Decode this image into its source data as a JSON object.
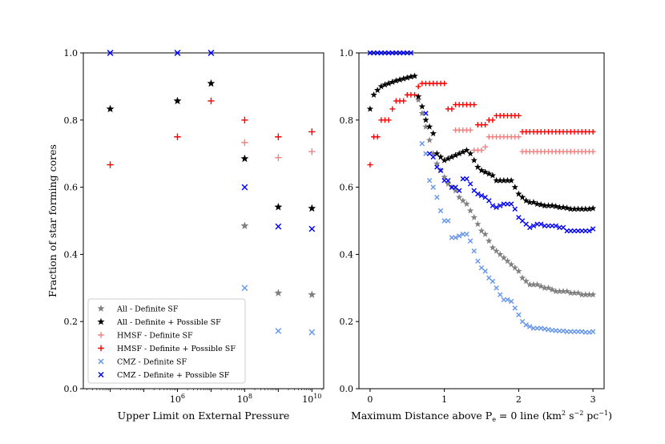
{
  "series_styles": [
    {
      "key": "all_def",
      "marker": "star",
      "color": "#808080"
    },
    {
      "key": "all_poss",
      "marker": "star",
      "color": "#000000"
    },
    {
      "key": "hmsf_def",
      "marker": "plus",
      "color": "#f08080"
    },
    {
      "key": "hmsf_poss",
      "marker": "plus",
      "color": "#ff0000"
    },
    {
      "key": "cmz_def",
      "marker": "x",
      "color": "#6495ed"
    },
    {
      "key": "cmz_poss",
      "marker": "x",
      "color": "#0000ff"
    }
  ],
  "legend": [
    "All - Definite SF",
    "All - Definite + Possible SF",
    "HMSF - Definite SF",
    "HMSF - Definite + Possible SF",
    "CMZ - Definite SF",
    "CMZ - Definite + Possible SF"
  ],
  "chart_data": [
    {
      "type": "scatter",
      "title": "",
      "xlabel": "Upper Limit on External Pressure",
      "ylabel": "Fraction of star forming cores",
      "xscale": "log",
      "xlim": [
        3.2,
        10.35
      ],
      "ylim": [
        0.0,
        1.0
      ],
      "x_ticks": [
        6,
        8,
        10
      ],
      "x_tick_labels": [
        {
          "base": "10",
          "exp": "6"
        },
        {
          "base": "10",
          "exp": "8"
        },
        {
          "base": "10",
          "exp": "10"
        }
      ],
      "y_ticks": [
        "0.0",
        "0.2",
        "0.4",
        "0.6",
        "0.8",
        "1.0"
      ],
      "x_log10": [
        4,
        6,
        7,
        8,
        9,
        10
      ],
      "series": [
        {
          "name": "All - Definite SF",
          "values": [
            null,
            null,
            null,
            0.485,
            0.285,
            0.28
          ]
        },
        {
          "name": "All - Definite + Possible SF",
          "values": [
            0.833,
            0.857,
            0.909,
            0.685,
            0.541,
            0.537
          ]
        },
        {
          "name": "HMSF - Definite SF",
          "values": [
            null,
            null,
            null,
            0.733,
            0.688,
            0.706
          ]
        },
        {
          "name": "HMSF - Definite + Possible SF",
          "values": [
            0.667,
            0.75,
            0.857,
            0.8,
            0.75,
            0.765
          ]
        },
        {
          "name": "CMZ - Definite SF",
          "values": [
            1.0,
            1.0,
            1.0,
            0.3,
            0.172,
            0.168
          ]
        },
        {
          "name": "CMZ - Definite + Possible SF",
          "values": [
            1.0,
            1.0,
            1.0,
            0.6,
            0.483,
            0.476
          ]
        }
      ]
    },
    {
      "type": "scatter",
      "title": "",
      "xlabel": "Maximum Distance above P",
      "xlabel_sub": "e",
      "xlabel_mid": " = 0 line (km",
      "xlabel_exp1": "2",
      "xlabel_mid2": " s",
      "xlabel_exp2": "−2",
      "xlabel_mid3": " pc",
      "xlabel_exp3": "−1",
      "xlabel_end": ")",
      "ylabel": "",
      "xlim": [
        -0.15,
        3.15
      ],
      "ylim": [
        0.0,
        1.0
      ],
      "x_ticks": [
        "0",
        "1",
        "2",
        "3"
      ],
      "y_ticks": [
        "0.0",
        "0.2",
        "0.4",
        "0.6",
        "0.8",
        "1.0"
      ],
      "x": [
        0.0,
        0.05,
        0.1,
        0.15,
        0.2,
        0.25,
        0.3,
        0.35,
        0.4,
        0.45,
        0.5,
        0.55,
        0.6,
        0.65,
        0.7,
        0.75,
        0.8,
        0.85,
        0.9,
        0.95,
        1.0,
        1.05,
        1.1,
        1.15,
        1.2,
        1.25,
        1.3,
        1.35,
        1.4,
        1.45,
        1.5,
        1.55,
        1.6,
        1.65,
        1.7,
        1.75,
        1.8,
        1.85,
        1.9,
        1.95,
        2.0,
        2.05,
        2.1,
        2.15,
        2.2,
        2.25,
        2.3,
        2.35,
        2.4,
        2.45,
        2.5,
        2.55,
        2.6,
        2.65,
        2.7,
        2.75,
        2.8,
        2.85,
        2.9,
        2.95,
        3.0
      ],
      "series": [
        {
          "name": "All - Definite SF",
          "values": [
            null,
            null,
            null,
            null,
            null,
            null,
            null,
            null,
            null,
            null,
            null,
            null,
            null,
            0.86,
            0.82,
            0.78,
            0.74,
            0.7,
            0.67,
            0.65,
            0.63,
            0.61,
            0.6,
            0.59,
            0.57,
            0.56,
            0.55,
            0.53,
            0.51,
            0.49,
            0.47,
            0.46,
            0.44,
            0.42,
            0.41,
            0.4,
            0.39,
            0.38,
            0.37,
            0.36,
            0.35,
            0.33,
            0.32,
            0.31,
            0.31,
            0.31,
            0.305,
            0.3,
            0.3,
            0.295,
            0.29,
            0.29,
            0.29,
            0.29,
            0.285,
            0.285,
            0.285,
            0.28,
            0.28,
            0.28,
            0.28
          ]
        },
        {
          "name": "All - Definite + Possible SF",
          "values": [
            0.833,
            0.875,
            0.889,
            0.9,
            0.905,
            0.909,
            0.913,
            0.917,
            0.92,
            0.923,
            0.926,
            0.929,
            0.931,
            0.87,
            0.84,
            0.8,
            0.78,
            0.76,
            0.7,
            0.69,
            0.68,
            0.685,
            0.69,
            0.695,
            0.7,
            0.705,
            0.71,
            0.7,
            0.68,
            0.66,
            0.65,
            0.645,
            0.64,
            0.635,
            0.62,
            0.62,
            0.62,
            0.62,
            0.62,
            0.6,
            0.58,
            0.57,
            0.56,
            0.555,
            0.555,
            0.55,
            0.548,
            0.545,
            0.545,
            0.545,
            0.543,
            0.54,
            0.54,
            0.538,
            0.535,
            0.535,
            0.535,
            0.535,
            0.535,
            0.535,
            0.537
          ]
        },
        {
          "name": "HMSF - Definite SF",
          "values": [
            null,
            null,
            null,
            null,
            null,
            null,
            null,
            null,
            null,
            null,
            null,
            null,
            null,
            null,
            null,
            null,
            null,
            null,
            null,
            null,
            null,
            null,
            null,
            0.77,
            0.77,
            0.77,
            0.77,
            0.77,
            0.71,
            0.71,
            0.71,
            0.72,
            0.75,
            0.75,
            0.75,
            0.75,
            0.75,
            0.75,
            0.75,
            0.75,
            0.75,
            0.706,
            0.706,
            0.706,
            0.706,
            0.706,
            0.706,
            0.706,
            0.706,
            0.706,
            0.706,
            0.706,
            0.706,
            0.706,
            0.706,
            0.706,
            0.706,
            0.706,
            0.706,
            0.706,
            0.706
          ]
        },
        {
          "name": "HMSF - Definite + Possible SF",
          "values": [
            0.667,
            0.75,
            0.75,
            0.8,
            0.8,
            0.8,
            0.833,
            0.857,
            0.857,
            0.857,
            0.875,
            0.875,
            0.875,
            0.9,
            0.909,
            0.909,
            0.909,
            0.909,
            0.909,
            0.909,
            0.909,
            0.833,
            0.833,
            0.846,
            0.846,
            0.846,
            0.846,
            0.846,
            0.846,
            0.786,
            0.786,
            0.786,
            0.8,
            0.8,
            0.813,
            0.813,
            0.813,
            0.813,
            0.813,
            0.813,
            0.813,
            0.765,
            0.765,
            0.765,
            0.765,
            0.765,
            0.765,
            0.765,
            0.765,
            0.765,
            0.765,
            0.765,
            0.765,
            0.765,
            0.765,
            0.765,
            0.765,
            0.765,
            0.765,
            0.765,
            0.765
          ]
        },
        {
          "name": "CMZ - Definite SF",
          "values": [
            1.0,
            1.0,
            1.0,
            1.0,
            1.0,
            1.0,
            1.0,
            1.0,
            1.0,
            1.0,
            1.0,
            1.0,
            null,
            null,
            0.73,
            0.7,
            0.62,
            0.6,
            0.57,
            0.53,
            0.5,
            0.5,
            0.45,
            0.45,
            0.455,
            0.46,
            0.46,
            0.44,
            0.41,
            0.38,
            0.36,
            0.35,
            0.33,
            0.32,
            0.3,
            0.28,
            0.265,
            0.265,
            0.26,
            0.24,
            0.22,
            0.2,
            0.19,
            0.185,
            0.18,
            0.18,
            0.18,
            0.178,
            0.176,
            0.174,
            0.173,
            0.172,
            0.172,
            0.17,
            0.17,
            0.17,
            0.17,
            0.17,
            0.168,
            0.168,
            0.17
          ]
        },
        {
          "name": "CMZ - Definite + Possible SF",
          "values": [
            1.0,
            1.0,
            1.0,
            1.0,
            1.0,
            1.0,
            1.0,
            1.0,
            1.0,
            1.0,
            1.0,
            1.0,
            null,
            null,
            null,
            0.82,
            0.7,
            0.69,
            0.66,
            0.65,
            0.62,
            0.62,
            0.6,
            0.6,
            0.59,
            0.625,
            0.625,
            0.61,
            0.59,
            0.58,
            0.575,
            0.57,
            0.56,
            0.545,
            0.54,
            0.545,
            0.55,
            0.55,
            0.55,
            0.535,
            0.51,
            0.5,
            0.49,
            0.48,
            0.485,
            0.49,
            0.49,
            0.485,
            0.485,
            0.485,
            0.485,
            0.48,
            0.48,
            0.47,
            0.47,
            0.47,
            0.47,
            0.47,
            0.47,
            0.47,
            0.476
          ]
        }
      ]
    }
  ]
}
